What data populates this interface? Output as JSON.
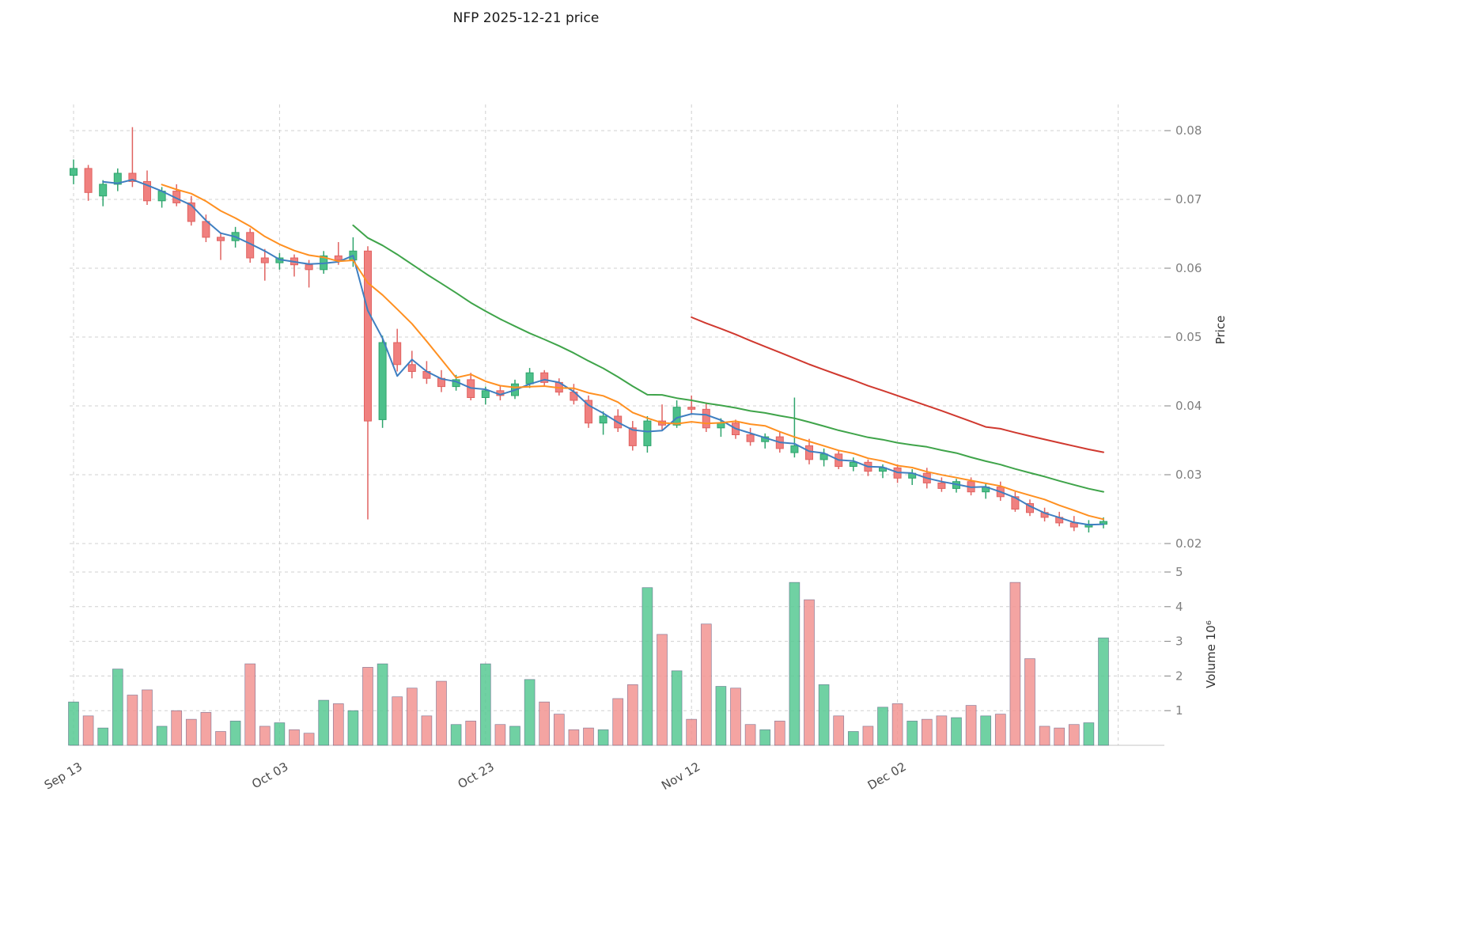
{
  "chart_data": {
    "type": "candlestick",
    "title": "NFP  2025-12-21  price",
    "ylabel_right": "Price",
    "ylabel2_right": "Volume  10⁶",
    "price_range": [
      0.0185,
      0.0838
    ],
    "volume_range": [
      0,
      5.25
    ],
    "price_ticks": [
      0.02,
      0.03,
      0.04,
      0.05,
      0.06,
      0.07,
      0.08
    ],
    "volume_ticks": [
      1,
      2,
      3,
      4,
      5
    ],
    "x_ticks": {
      "labels": [
        "Sep 13",
        "Oct 03",
        "Oct 23",
        "Nov 12",
        "Dec 02"
      ],
      "indices": [
        0,
        14,
        28,
        42,
        56
      ],
      "right_edge_gridline_index": 71
    },
    "colors": {
      "up": "#4cc08a",
      "up_edge": "#2ea46c",
      "down": "#f0807f",
      "down_edge": "#e06260",
      "vol_up": "#57c993",
      "vol_down": "#f29492",
      "vol_edge": "#3c3c6e",
      "grid": "#d0d0d0",
      "tick_label": "#7f7f7f",
      "date_label": "#4a4a4a",
      "title": "#1a1a1a"
    },
    "moving_averages": [
      {
        "name": "ma-short",
        "window": 3,
        "color": "#3f7fc1"
      },
      {
        "name": "ma-medium",
        "window": 7,
        "color": "#ff9021"
      },
      {
        "name": "ma-long",
        "window": 20,
        "color": "#3fa44a"
      },
      {
        "name": "ma-longest",
        "window": 43,
        "color": "#d0392f"
      }
    ],
    "candles_format": [
      "open",
      "high",
      "low",
      "close",
      "volume_millions"
    ],
    "candles": [
      [
        0.0735,
        0.0758,
        0.0722,
        0.0745,
        1.25
      ],
      [
        0.0745,
        0.075,
        0.0698,
        0.071,
        0.85
      ],
      [
        0.0705,
        0.0728,
        0.069,
        0.0722,
        0.5
      ],
      [
        0.0722,
        0.0745,
        0.0712,
        0.0738,
        2.2
      ],
      [
        0.0738,
        0.0805,
        0.0718,
        0.0726,
        1.45
      ],
      [
        0.0726,
        0.0742,
        0.0692,
        0.0698,
        1.6
      ],
      [
        0.0698,
        0.0718,
        0.0688,
        0.0712,
        0.55
      ],
      [
        0.0712,
        0.0722,
        0.069,
        0.0695,
        1.0
      ],
      [
        0.0695,
        0.0705,
        0.0662,
        0.0668,
        0.75
      ],
      [
        0.0668,
        0.0678,
        0.0638,
        0.0645,
        0.95
      ],
      [
        0.0645,
        0.0652,
        0.0612,
        0.064,
        0.4
      ],
      [
        0.064,
        0.066,
        0.063,
        0.0652,
        0.7
      ],
      [
        0.0652,
        0.0658,
        0.0608,
        0.0615,
        2.35
      ],
      [
        0.0615,
        0.0628,
        0.0582,
        0.0608,
        0.55
      ],
      [
        0.0608,
        0.0622,
        0.0598,
        0.0615,
        0.65
      ],
      [
        0.0615,
        0.062,
        0.0588,
        0.0605,
        0.45
      ],
      [
        0.0605,
        0.0612,
        0.0572,
        0.0598,
        0.35
      ],
      [
        0.0598,
        0.0625,
        0.0592,
        0.0618,
        1.3
      ],
      [
        0.0618,
        0.0638,
        0.0605,
        0.0612,
        1.2
      ],
      [
        0.0612,
        0.0645,
        0.0602,
        0.0625,
        1.0
      ],
      [
        0.0625,
        0.0632,
        0.0235,
        0.0378,
        2.25
      ],
      [
        0.038,
        0.0502,
        0.0368,
        0.0492,
        2.35
      ],
      [
        0.0492,
        0.0512,
        0.045,
        0.046,
        1.4
      ],
      [
        0.046,
        0.048,
        0.044,
        0.045,
        1.65
      ],
      [
        0.045,
        0.0465,
        0.0432,
        0.044,
        0.85
      ],
      [
        0.044,
        0.0452,
        0.042,
        0.0428,
        1.85
      ],
      [
        0.0428,
        0.0445,
        0.0422,
        0.0438,
        0.6
      ],
      [
        0.0438,
        0.0448,
        0.0408,
        0.0412,
        0.7
      ],
      [
        0.0412,
        0.0428,
        0.0402,
        0.0422,
        2.35
      ],
      [
        0.0422,
        0.043,
        0.0408,
        0.0415,
        0.6
      ],
      [
        0.0415,
        0.0438,
        0.041,
        0.0432,
        0.55
      ],
      [
        0.0432,
        0.0455,
        0.0426,
        0.0448,
        1.9
      ],
      [
        0.0448,
        0.0452,
        0.0428,
        0.0434,
        1.25
      ],
      [
        0.0434,
        0.044,
        0.0415,
        0.042,
        0.9
      ],
      [
        0.042,
        0.0432,
        0.0402,
        0.0408,
        0.45
      ],
      [
        0.0408,
        0.0415,
        0.0368,
        0.0375,
        0.5
      ],
      [
        0.0375,
        0.0392,
        0.0358,
        0.0385,
        0.45
      ],
      [
        0.0385,
        0.0395,
        0.0362,
        0.0368,
        1.35
      ],
      [
        0.0368,
        0.0378,
        0.0335,
        0.0342,
        1.75
      ],
      [
        0.0342,
        0.0385,
        0.0332,
        0.0378,
        4.55
      ],
      [
        0.0378,
        0.0402,
        0.0365,
        0.0372,
        3.2
      ],
      [
        0.0372,
        0.0408,
        0.0368,
        0.0398,
        2.15
      ],
      [
        0.0398,
        0.0415,
        0.0388,
        0.0395,
        0.75
      ],
      [
        0.0395,
        0.0405,
        0.0362,
        0.0368,
        3.5
      ],
      [
        0.0368,
        0.0382,
        0.0355,
        0.0375,
        1.7
      ],
      [
        0.0375,
        0.038,
        0.0352,
        0.0358,
        1.65
      ],
      [
        0.0358,
        0.0368,
        0.0342,
        0.0348,
        0.6
      ],
      [
        0.0348,
        0.036,
        0.0338,
        0.0355,
        0.45
      ],
      [
        0.0355,
        0.0362,
        0.0332,
        0.0338,
        0.7
      ],
      [
        0.0332,
        0.0412,
        0.0325,
        0.0342,
        4.7
      ],
      [
        0.0342,
        0.0352,
        0.0315,
        0.0322,
        4.2
      ],
      [
        0.0322,
        0.0338,
        0.0312,
        0.033,
        1.75
      ],
      [
        0.033,
        0.0336,
        0.0308,
        0.0312,
        0.85
      ],
      [
        0.0312,
        0.0325,
        0.0305,
        0.0318,
        0.4
      ],
      [
        0.0318,
        0.0322,
        0.0298,
        0.0305,
        0.55
      ],
      [
        0.0305,
        0.0315,
        0.0295,
        0.031,
        1.1
      ],
      [
        0.031,
        0.0315,
        0.0288,
        0.0295,
        1.2
      ],
      [
        0.0295,
        0.0308,
        0.0285,
        0.0302,
        0.7
      ],
      [
        0.0302,
        0.031,
        0.028,
        0.0288,
        0.75
      ],
      [
        0.0288,
        0.0296,
        0.0275,
        0.028,
        0.85
      ],
      [
        0.028,
        0.0294,
        0.0274,
        0.029,
        0.8
      ],
      [
        0.029,
        0.0296,
        0.027,
        0.0275,
        1.15
      ],
      [
        0.0275,
        0.0288,
        0.0265,
        0.0282,
        0.85
      ],
      [
        0.0282,
        0.029,
        0.0262,
        0.0268,
        0.9
      ],
      [
        0.0268,
        0.0275,
        0.0246,
        0.025,
        4.7
      ],
      [
        0.0258,
        0.0264,
        0.024,
        0.0245,
        2.5
      ],
      [
        0.0245,
        0.0252,
        0.0232,
        0.0238,
        0.55
      ],
      [
        0.0238,
        0.0246,
        0.0225,
        0.023,
        0.5
      ],
      [
        0.023,
        0.024,
        0.0218,
        0.0224,
        0.6
      ],
      [
        0.0224,
        0.0234,
        0.0216,
        0.0228,
        0.65
      ],
      [
        0.0228,
        0.0238,
        0.0222,
        0.0232,
        3.1
      ]
    ]
  }
}
